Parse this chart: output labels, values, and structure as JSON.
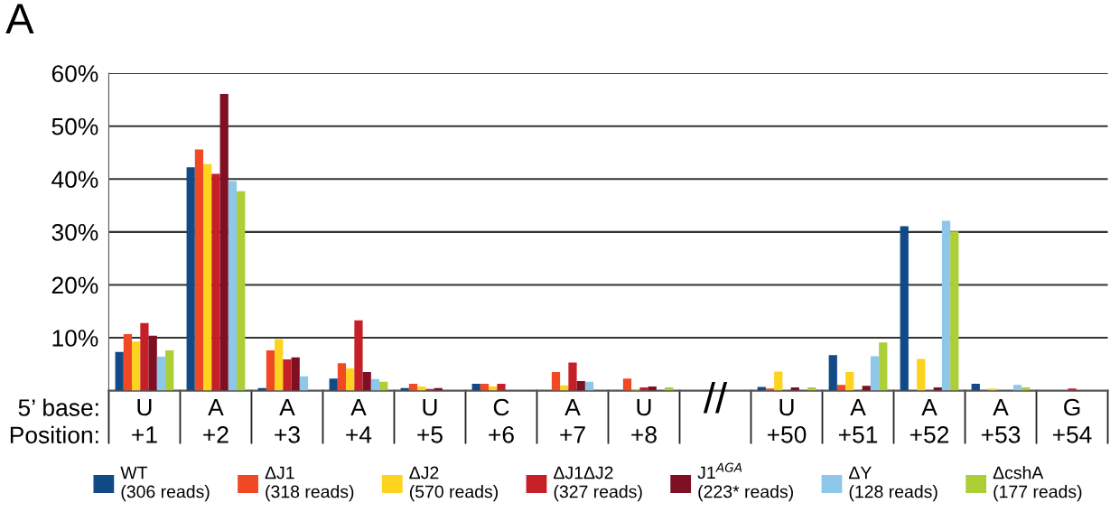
{
  "chart_data": {
    "type": "bar",
    "title": "A",
    "categories": [
      "U\n+1",
      "A\n+2",
      "A\n+3",
      "A\n+4",
      "U\n+5",
      "C\n+6",
      "A\n+7",
      "U\n+8",
      null,
      "U\n+50",
      "A\n+51",
      "A\n+52",
      "A\n+53",
      "G\n+54"
    ],
    "series": [
      {
        "name": "WT\n(306 reads)",
        "color": "#124a87",
        "values": [
          7.3,
          42.2,
          0.5,
          2.3,
          0.5,
          1.3,
          0,
          0,
          null,
          0.7,
          6.7,
          31.1,
          1.3,
          0
        ]
      },
      {
        "name": "ΔJ1\n(318 reads)",
        "color": "#f04923",
        "values": [
          10.7,
          45.6,
          7.6,
          5.2,
          1.3,
          1.3,
          3.5,
          2.3,
          null,
          0.4,
          1.1,
          0,
          0,
          0
        ]
      },
      {
        "name": "ΔJ2\n(570 reads)",
        "color": "#fdd31d",
        "values": [
          9.3,
          42.8,
          9.7,
          4.2,
          0.8,
          0.8,
          1.0,
          0.2,
          null,
          3.6,
          3.5,
          6.0,
          0.4,
          0
        ]
      },
      {
        "name": "ΔJ1ΔJ2\n(327 reads)",
        "color": "#c52027",
        "values": [
          12.8,
          41.0,
          5.9,
          13.3,
          0.3,
          1.3,
          5.3,
          0.6,
          null,
          0,
          0,
          0,
          0,
          0.4
        ]
      },
      {
        "name": "J1$^{AGA}$\n(223* reads)",
        "color": "#7f1023",
        "values": [
          10.4,
          56.1,
          6.3,
          3.5,
          0.5,
          0,
          1.8,
          0.8,
          null,
          0.6,
          0.9,
          0.6,
          0,
          0
        ]
      },
      {
        "name": "ΔY\n(128 reads)",
        "color": "#8dc7ea",
        "values": [
          6.4,
          39.6,
          2.7,
          2.2,
          0,
          0,
          1.7,
          0,
          null,
          0,
          6.5,
          32.1,
          1.1,
          0
        ]
      },
      {
        "name": "ΔcshA\n(177 reads)",
        "color": "#acce37",
        "values": [
          7.6,
          37.7,
          0,
          1.7,
          0,
          0,
          0,
          0.6,
          null,
          0.6,
          9.1,
          30.1,
          0.6,
          0
        ]
      }
    ],
    "ylim": [
      0,
      60
    ],
    "yticks": [
      {
        "value": 10,
        "label": "10%"
      },
      {
        "value": 20,
        "label": "20%"
      },
      {
        "value": 30,
        "label": "30%"
      },
      {
        "value": 40,
        "label": "40%"
      },
      {
        "value": 50,
        "label": "50%"
      },
      {
        "value": 60,
        "label": "60%"
      }
    ],
    "grid": "y",
    "legend": "bottom",
    "annotations": [
      "5’ base:\nPosition:",
      "//"
    ]
  }
}
